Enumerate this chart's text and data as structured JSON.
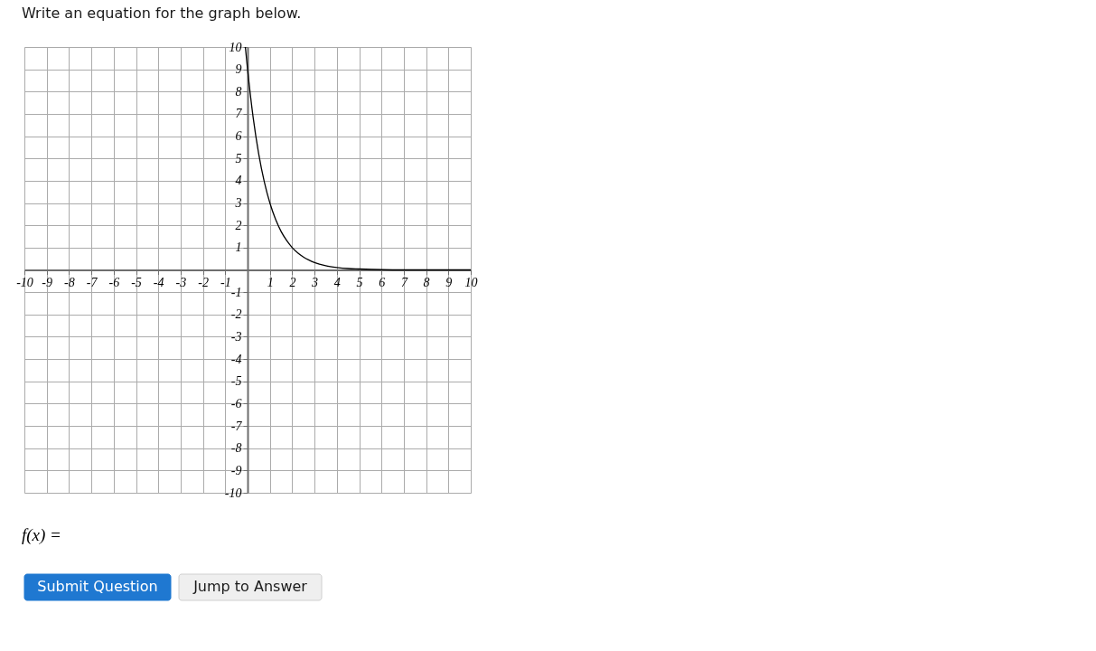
{
  "chart_data": {
    "type": "line",
    "title": "Write an equation for the graph below.",
    "xlim": [
      -10,
      10
    ],
    "ylim": [
      -10,
      10
    ],
    "xticks": [
      -10,
      -9,
      -8,
      -7,
      -6,
      -5,
      -4,
      -3,
      -2,
      -1,
      {
        "value": 0,
        "label": null
      },
      1,
      2,
      3,
      4,
      5,
      6,
      7,
      8,
      9,
      10
    ],
    "yticks": [
      -10,
      -9,
      -8,
      -7,
      -6,
      -5,
      -4,
      -3,
      -2,
      -1,
      {
        "value": 0,
        "label": null
      },
      1,
      2,
      3,
      4,
      5,
      6,
      7,
      8,
      9,
      10
    ],
    "grid": true,
    "line_style": "solid",
    "series": [
      {
        "color": "#000000",
        "x": [
          -0.1,
          0,
          0.25,
          0.5,
          0.75,
          1,
          1.25,
          1.5,
          1.75,
          2,
          2.25,
          2.5,
          2.75,
          3,
          3.5,
          4,
          4.5,
          5,
          6,
          7,
          8,
          9,
          10
        ],
        "values": [
          10,
          9,
          6.84,
          5.2,
          3.95,
          3,
          2.28,
          1.73,
          1.32,
          1,
          0.76,
          0.58,
          0.44,
          0.33,
          0.19,
          0.11,
          0.06,
          0.04,
          0.01,
          0,
          0,
          0,
          0
        ]
      }
    ],
    "annotations": [
      "f(x) =",
      "Submit Question",
      "Jump to Answer"
    ]
  }
}
